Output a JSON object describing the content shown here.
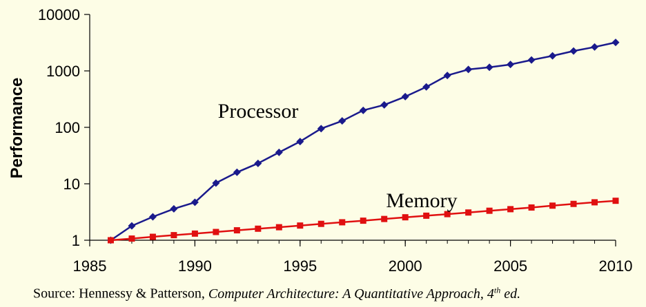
{
  "chart_data": {
    "type": "line",
    "ylabel": "Performance",
    "xlabel": "",
    "yscale": "log",
    "ylim": [
      1,
      10000
    ],
    "xlim": [
      1985,
      2010
    ],
    "x_ticks": [
      "1985",
      "1990",
      "1995",
      "2000",
      "2005",
      "2010"
    ],
    "y_ticks": [
      "1",
      "10",
      "100",
      "1000",
      "10000"
    ],
    "grid": false,
    "series": [
      {
        "name": "Processor",
        "color": "#1a1a8c",
        "marker": "diamond",
        "x": [
          1986,
          1987,
          1988,
          1989,
          1990,
          1991,
          1992,
          1993,
          1994,
          1995,
          1996,
          1997,
          1998,
          1999,
          2000,
          2001,
          2002,
          2003,
          2004,
          2005,
          2006,
          2007,
          2008,
          2009,
          2010
        ],
        "values": [
          1,
          1.8,
          2.6,
          3.6,
          4.7,
          10.3,
          16,
          23,
          36,
          56,
          95,
          130,
          200,
          250,
          350,
          520,
          830,
          1060,
          1160,
          1300,
          1560,
          1850,
          2250,
          2650,
          3200
        ]
      },
      {
        "name": "Memory",
        "color": "#e01010",
        "marker": "square",
        "x": [
          1986,
          1987,
          1988,
          1989,
          1990,
          1991,
          1992,
          1993,
          1994,
          1995,
          1996,
          1997,
          1998,
          1999,
          2000,
          2001,
          2002,
          2003,
          2004,
          2005,
          2006,
          2007,
          2008,
          2009,
          2010
        ],
        "values": [
          1,
          1.07,
          1.15,
          1.23,
          1.31,
          1.4,
          1.5,
          1.6,
          1.7,
          1.82,
          1.95,
          2.08,
          2.22,
          2.38,
          2.55,
          2.72,
          2.9,
          3.1,
          3.33,
          3.55,
          3.8,
          4.1,
          4.4,
          4.7,
          5.0
        ]
      }
    ]
  },
  "source": {
    "prefix": "Source: Hennessy & Patterson, ",
    "title": "Computer Architecture: A Quantitative Approach, 4",
    "edition_sup": "th",
    "suffix": " ed."
  }
}
